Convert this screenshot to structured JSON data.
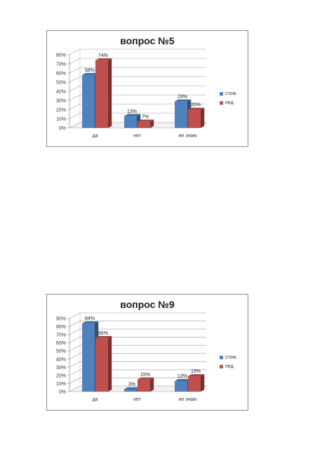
{
  "colors": {
    "series_1": "#4f81bd",
    "series_2": "#c0504d"
  },
  "chart_data": [
    {
      "type": "bar",
      "title": "вопрос №5",
      "categories": [
        "да",
        "нет",
        "не знаю"
      ],
      "series": [
        {
          "name": "стом.",
          "values": [
            58,
            13,
            29
          ],
          "labels": [
            "58%",
            "13%",
            "29%"
          ]
        },
        {
          "name": "пед.",
          "values": [
            74,
            7,
            20
          ],
          "labels": [
            "74%",
            "7%",
            "20%"
          ]
        }
      ],
      "yticks": [
        "0%",
        "10%",
        "20%",
        "30%",
        "40%",
        "50%",
        "60%",
        "70%",
        "80%"
      ],
      "ylim": [
        0,
        80
      ],
      "xlabel": "",
      "ylabel": "",
      "grid": true,
      "legend": "right"
    },
    {
      "type": "bar",
      "title": "вопрос №9",
      "categories": [
        "да",
        "нет",
        "не знаю"
      ],
      "series": [
        {
          "name": "стом.",
          "values": [
            84,
            3,
            13
          ],
          "labels": [
            "84%",
            "3%",
            "13%"
          ]
        },
        {
          "name": "пед.",
          "values": [
            66,
            15,
            19
          ],
          "labels": [
            "66%",
            "15%",
            "19%"
          ]
        }
      ],
      "yticks": [
        "0%",
        "10%",
        "20%",
        "30%",
        "40%",
        "50%",
        "60%",
        "70%",
        "80%",
        "90%"
      ],
      "ylim": [
        0,
        90
      ],
      "xlabel": "",
      "ylabel": "",
      "grid": true,
      "legend": "right"
    }
  ]
}
